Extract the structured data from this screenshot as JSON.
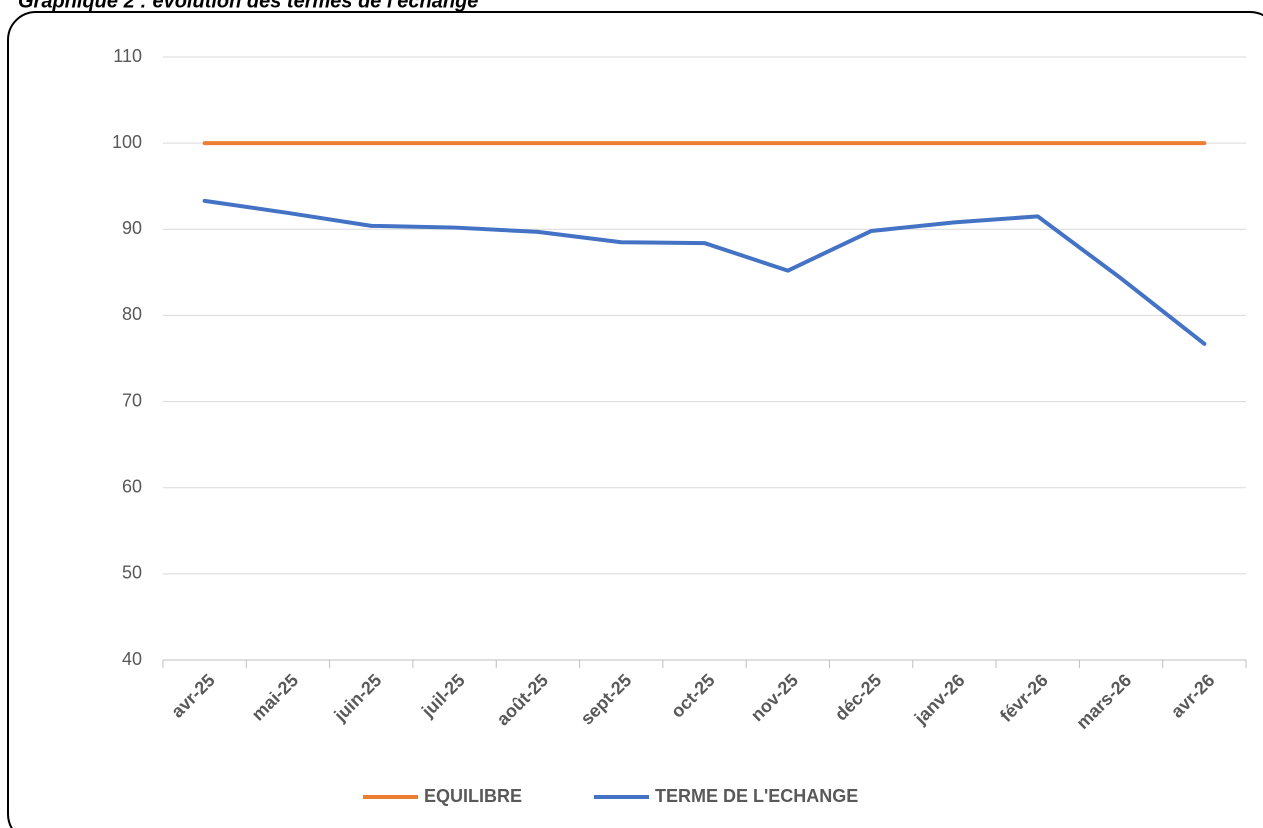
{
  "chart_data": {
    "type": "line",
    "title": "Graphique 2 : évolution des termes de l'échange",
    "categories": [
      "avr-25",
      "mai-25",
      "juin-25",
      "juil-25",
      "août-25",
      "sept-25",
      "oct-25",
      "nov-25",
      "déc-25",
      "janv-26",
      "févr-26",
      "mars-26",
      "avr-26"
    ],
    "series": [
      {
        "name": "EQUILIBRE",
        "color": "#ed7d31",
        "values": [
          100,
          100,
          100,
          100,
          100,
          100,
          100,
          100,
          100,
          100,
          100,
          100,
          100
        ]
      },
      {
        "name": "TERME DE L'ECHANGE",
        "color": "#4472c4",
        "values": [
          93.3,
          91.9,
          90.4,
          90.2,
          89.7,
          88.5,
          88.4,
          85.2,
          89.8,
          90.8,
          91.5,
          84.3,
          76.7
        ]
      }
    ],
    "ylim": [
      40,
      110
    ],
    "yticks": [
      40,
      50,
      60,
      70,
      80,
      90,
      100,
      110
    ],
    "grid": true,
    "legend": "bottom"
  }
}
